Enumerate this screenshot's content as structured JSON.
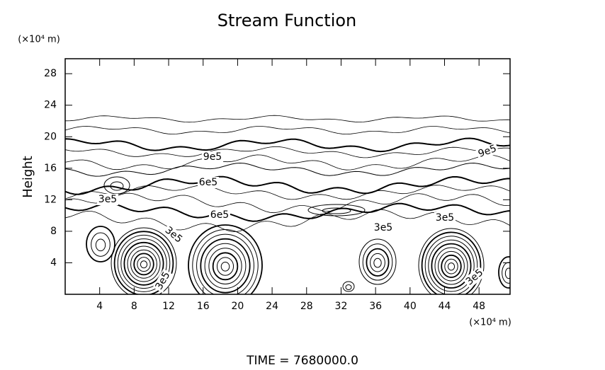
{
  "chart_data": {
    "type": "contour",
    "title": "Stream Function",
    "ylabel": "Height",
    "x_unit": "(×10⁴ m)",
    "y_unit": "(×10⁴ m)",
    "xlim": [
      0,
      51.6
    ],
    "ylim": [
      0,
      29.9
    ],
    "xticks": [
      4,
      8,
      12,
      16,
      20,
      24,
      28,
      32,
      36,
      40,
      44,
      48
    ],
    "yticks": [
      4,
      8,
      12,
      16,
      20,
      24,
      28
    ],
    "contour_labels": [
      "9e5",
      "6e5",
      "3e5",
      "6e5",
      "3e5",
      "3e5",
      "3e5",
      "9e5",
      "3e5",
      "3e5"
    ],
    "footer": "TIME = 7680000.0",
    "color": "#000000"
  }
}
